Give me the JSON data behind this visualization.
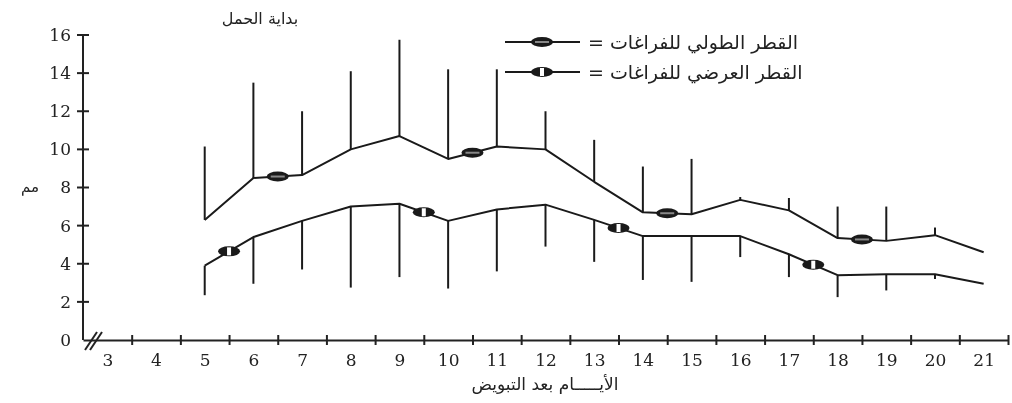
{
  "chart_data": {
    "type": "line",
    "title": "بداية الحمل",
    "xlabel": "الأيـــــام بعد التبويض",
    "ylabel": "مم",
    "x": [
      5,
      6,
      7,
      8,
      9,
      10,
      11,
      12,
      13,
      14,
      15,
      16,
      17,
      18,
      19,
      20,
      21
    ],
    "xlim": [
      2.5,
      21.5
    ],
    "xticks": [
      {
        "value": 3,
        "label": "3"
      },
      {
        "value": 4,
        "label": "4"
      },
      {
        "value": 5,
        "label": "5"
      },
      {
        "value": 6,
        "label": "6"
      },
      {
        "value": 7,
        "label": "7"
      },
      {
        "value": 8,
        "label": "8"
      },
      {
        "value": 9,
        "label": "9"
      },
      {
        "value": 10,
        "label": "10"
      },
      {
        "value": 11,
        "label": "11"
      },
      {
        "value": 12,
        "label": "12"
      },
      {
        "value": 13,
        "label": "13"
      },
      {
        "value": 14,
        "label": "14"
      },
      {
        "value": 15,
        "label": "15"
      },
      {
        "value": 16,
        "label": "16"
      },
      {
        "value": 17,
        "label": "17"
      },
      {
        "value": 18,
        "label": "18"
      },
      {
        "value": 19,
        "label": "19"
      },
      {
        "value": 20,
        "label": "20"
      },
      {
        "value": 21,
        "label": "21"
      },
      {
        "value": 3.5,
        "label": null
      },
      {
        "value": 4.5,
        "label": null
      },
      {
        "value": 5.5,
        "label": null
      },
      {
        "value": 6.5,
        "label": null
      },
      {
        "value": 7.5,
        "label": null
      },
      {
        "value": 8.5,
        "label": null
      },
      {
        "value": 9.5,
        "label": null
      },
      {
        "value": 10.5,
        "label": null
      },
      {
        "value": 11.5,
        "label": null
      },
      {
        "value": 12.5,
        "label": null
      },
      {
        "value": 13.5,
        "label": null
      },
      {
        "value": 14.5,
        "label": null
      },
      {
        "value": 15.5,
        "label": null
      },
      {
        "value": 16.5,
        "label": null
      },
      {
        "value": 17.5,
        "label": null
      },
      {
        "value": 18.5,
        "label": null
      },
      {
        "value": 19.5,
        "label": null
      },
      {
        "value": 20.5,
        "label": null
      },
      {
        "value": 21.5,
        "label": null
      }
    ],
    "ylim": [
      0,
      16
    ],
    "yticks": [
      0,
      2,
      4,
      6,
      8,
      10,
      12,
      14,
      16
    ],
    "grid": false,
    "legend": "top right",
    "line_style": "solid",
    "series": [
      {
        "name": "القطر الطولي للفراغات =",
        "color": "#1a1a1a",
        "values": [
          6.3,
          8.5,
          8.65,
          10.0,
          10.7,
          9.5,
          10.15,
          10.0,
          8.3,
          6.7,
          6.6,
          7.35,
          6.8,
          5.35,
          5.2,
          5.5,
          4.6
        ],
        "errors": [
          [
            6.3,
            10.15
          ],
          [
            8.5,
            13.5
          ],
          [
            8.65,
            12.0
          ],
          [
            10.0,
            14.1
          ],
          [
            10.7,
            15.75
          ],
          [
            9.5,
            14.2
          ],
          [
            10.15,
            14.2
          ],
          [
            10.0,
            12.0
          ],
          [
            8.3,
            10.5
          ],
          [
            6.7,
            9.1
          ],
          [
            6.6,
            9.5
          ],
          [
            7.35,
            7.5
          ],
          [
            6.8,
            7.45
          ],
          [
            5.35,
            7.0
          ],
          [
            5.2,
            7.0
          ],
          [
            5.5,
            5.9
          ],
          null
        ]
      },
      {
        "name": "القطر العرضي للفراغات =",
        "color": "#1a1a1a",
        "values": [
          3.9,
          5.4,
          6.25,
          7.0,
          7.15,
          6.25,
          6.85,
          7.1,
          6.3,
          5.45,
          5.45,
          5.45,
          4.5,
          3.4,
          3.45,
          3.45,
          2.95
        ],
        "errors": [
          [
            2.35,
            3.9
          ],
          [
            2.95,
            5.4
          ],
          [
            3.7,
            6.25
          ],
          [
            2.75,
            7.0
          ],
          [
            3.3,
            7.15
          ],
          [
            2.7,
            6.25
          ],
          [
            3.6,
            6.85
          ],
          [
            4.9,
            7.1
          ],
          [
            4.1,
            6.3
          ],
          [
            3.15,
            5.45
          ],
          [
            3.05,
            5.45
          ],
          [
            4.35,
            5.45
          ],
          [
            3.3,
            4.5
          ],
          [
            2.25,
            3.4
          ],
          [
            2.6,
            3.45
          ],
          [
            3.2,
            3.45
          ],
          null
        ]
      }
    ]
  }
}
